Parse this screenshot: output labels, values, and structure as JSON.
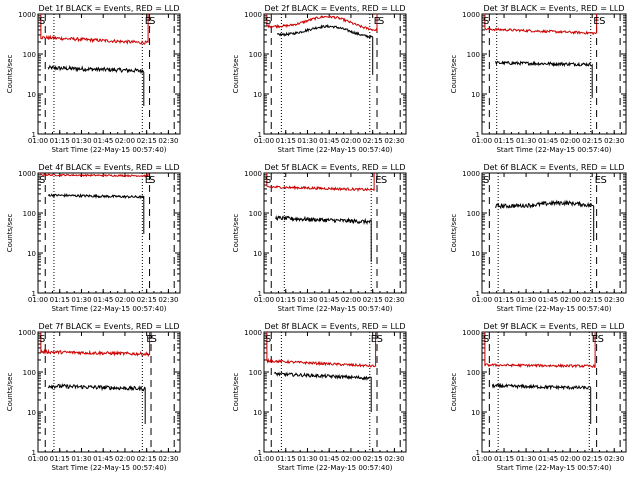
{
  "figure": {
    "panels_title_template": "Det {det} BLACK = Events, RED = LLD"
  },
  "chart_data": [
    {
      "type": "line",
      "det": "1f",
      "title": "Det 1f BLACK = Events, RED = LLD",
      "xlabel": "Start Time (22-May-15 00:57:40)",
      "ylabel": "Counts/sec",
      "yscale": "log",
      "ylim": [
        1,
        1000
      ],
      "xlim": [
        "01:00",
        "02:38"
      ],
      "x_ticks": [
        "01:00",
        "01:15",
        "01:30",
        "01:45",
        "02:00",
        "02:15",
        "02:30"
      ],
      "y_ticks": [
        "1",
        "10",
        "100",
        "1000"
      ],
      "flags": [
        {
          "label": "S",
          "time": "01:00"
        },
        {
          "label": "E",
          "time": "02:13"
        },
        {
          "label": "S",
          "time": "02:16"
        }
      ],
      "dashed_lines": [
        "01:05",
        "02:17",
        "02:34"
      ],
      "dotted_lines": [
        "01:11",
        "02:12"
      ],
      "series": [
        {
          "color": "#000000",
          "start": "01:07",
          "end": "02:13",
          "level_start": 45,
          "level_end": 38,
          "noise": 0.05,
          "drop_to": 5
        },
        {
          "color": "#cc0000",
          "start": "01:02",
          "end": "02:16",
          "level_start": 260,
          "level_end": 190,
          "noise": 0.04,
          "rise_start": 1000,
          "rise_end": 1000
        }
      ]
    },
    {
      "type": "line",
      "det": "2f",
      "title": "Det 2f BLACK = Events, RED = LLD",
      "xlabel": "Start Time (22-May-15 00:57:40)",
      "ylabel": "Counts/sec",
      "yscale": "log",
      "ylim": [
        1,
        1000
      ],
      "xlim": [
        "01:00",
        "02:38"
      ],
      "x_ticks": [
        "01:00",
        "01:15",
        "01:30",
        "01:45",
        "02:00",
        "02:15",
        "02:30"
      ],
      "y_ticks": [
        "1",
        "10",
        "100",
        "1000"
      ],
      "flags": [
        {
          "label": "S",
          "time": "01:00"
        },
        {
          "label": "E",
          "time": "02:15"
        },
        {
          "label": "S",
          "time": "02:18"
        }
      ],
      "dashed_lines": [
        "01:05",
        "02:18",
        "02:34"
      ],
      "dotted_lines": [
        "01:12",
        "02:13"
      ],
      "series": [
        {
          "color": "#000000",
          "start": "01:09",
          "end": "02:15",
          "level_start": 300,
          "level_end": 250,
          "noise": 0.03,
          "drop_to": 30,
          "bump": {
            "center": "01:45",
            "height": 1.8,
            "width": 18
          }
        },
        {
          "color": "#cc0000",
          "start": "01:02",
          "end": "02:18",
          "level_start": 500,
          "level_end": 380,
          "noise": 0.03,
          "rise_start": 1000,
          "rise_end": 1000,
          "bump": {
            "center": "01:45",
            "height": 2.0,
            "width": 18
          }
        }
      ]
    },
    {
      "type": "line",
      "det": "3f",
      "title": "Det 3f BLACK = Events, RED = LLD",
      "xlabel": "Start Time (22-May-15 00:57:40)",
      "ylabel": "Counts/sec",
      "yscale": "log",
      "ylim": [
        1,
        1000
      ],
      "xlim": [
        "01:00",
        "02:38"
      ],
      "x_ticks": [
        "01:00",
        "01:15",
        "01:30",
        "01:45",
        "02:00",
        "02:15",
        "02:30"
      ],
      "y_ticks": [
        "1",
        "10",
        "100",
        "1000"
      ],
      "flags": [
        {
          "label": "S",
          "time": "01:00"
        },
        {
          "label": "E",
          "time": "02:15"
        },
        {
          "label": "S",
          "time": "02:19"
        }
      ],
      "dashed_lines": [
        "01:05",
        "02:18",
        "02:34"
      ],
      "dotted_lines": [
        "01:10",
        "02:14"
      ],
      "series": [
        {
          "color": "#000000",
          "start": "01:09",
          "end": "02:15",
          "level_start": 60,
          "level_end": 55,
          "noise": 0.04,
          "drop_to": 8
        },
        {
          "color": "#cc0000",
          "start": "01:02",
          "end": "02:18",
          "level_start": 420,
          "level_end": 330,
          "noise": 0.03,
          "rise_start": 1000,
          "rise_end": 1000
        }
      ]
    },
    {
      "type": "line",
      "det": "4f",
      "title": "Det 4f BLACK = Events, RED = LLD",
      "xlabel": "Start Time (22-May-15 00:57:40)",
      "ylabel": "Counts/sec",
      "yscale": "log",
      "ylim": [
        1,
        1000
      ],
      "xlim": [
        "01:00",
        "02:38"
      ],
      "x_ticks": [
        "01:00",
        "01:15",
        "01:30",
        "01:45",
        "02:00",
        "02:15",
        "02:30"
      ],
      "y_ticks": [
        "1",
        "10",
        "100",
        "1000"
      ],
      "flags": [
        {
          "label": "S",
          "time": "01:00"
        },
        {
          "label": "E",
          "time": "02:13"
        },
        {
          "label": "S",
          "time": "02:16"
        }
      ],
      "dashed_lines": [
        "01:05",
        "02:17",
        "02:34"
      ],
      "dotted_lines": [
        "01:11",
        "02:12"
      ],
      "series": [
        {
          "color": "#000000",
          "start": "01:07",
          "end": "02:13",
          "level_start": 280,
          "level_end": 250,
          "noise": 0.03,
          "drop_to": 30
        },
        {
          "color": "#cc0000",
          "start": "01:02",
          "end": "02:16",
          "level_start": 900,
          "level_end": 850,
          "noise": 0.02,
          "rise_start": 1000,
          "rise_end": 1000
        }
      ]
    },
    {
      "type": "line",
      "det": "5f",
      "title": "Det 5f BLACK = Events, RED = LLD",
      "xlabel": "Start Time (22-May-15 00:57:40)",
      "ylabel": "Counts/sec",
      "yscale": "log",
      "ylim": [
        1,
        1000
      ],
      "xlim": [
        "01:00",
        "02:38"
      ],
      "x_ticks": [
        "01:00",
        "01:15",
        "01:30",
        "01:45",
        "02:00",
        "02:15",
        "02:30"
      ],
      "y_ticks": [
        "1",
        "10",
        "100",
        "1000"
      ],
      "flags": [
        {
          "label": "S",
          "time": "01:00"
        },
        {
          "label": "E",
          "time": "02:16"
        },
        {
          "label": "S",
          "time": "02:20"
        }
      ],
      "dashed_lines": [
        "01:05",
        "02:18",
        "02:34"
      ],
      "dotted_lines": [
        "01:14",
        "02:14"
      ],
      "series": [
        {
          "color": "#000000",
          "start": "01:08",
          "end": "02:14",
          "level_start": 75,
          "level_end": 60,
          "noise": 0.05,
          "drop_to": 6
        },
        {
          "color": "#cc0000",
          "start": "01:02",
          "end": "02:16",
          "level_start": 450,
          "level_end": 380,
          "noise": 0.03,
          "rise_start": 1000,
          "rise_end": 1000
        }
      ]
    },
    {
      "type": "line",
      "det": "6f",
      "title": "Det 6f BLACK = Events, RED = LLD",
      "xlabel": "Start Time (22-May-15 00:57:40)",
      "ylabel": "Counts/sec",
      "yscale": "log",
      "ylim": [
        1,
        1000
      ],
      "xlim": [
        "01:00",
        "02:38"
      ],
      "x_ticks": [
        "01:00",
        "01:15",
        "01:30",
        "01:45",
        "02:00",
        "02:15",
        "02:30"
      ],
      "y_ticks": [
        "1",
        "10",
        "100",
        "1000"
      ],
      "flags": [
        {
          "label": "S",
          "time": "01:00"
        },
        {
          "label": "E",
          "time": "02:16"
        },
        {
          "label": "S",
          "time": "02:20"
        }
      ],
      "dashed_lines": [
        "01:05",
        "02:18",
        "02:34"
      ],
      "dotted_lines": [
        "01:11",
        "02:14"
      ],
      "series": [
        {
          "color": "#000000",
          "start": "01:09",
          "end": "02:16",
          "level_start": 150,
          "level_end": 140,
          "noise": 0.05,
          "drop_to": 20,
          "bump": {
            "center": "01:55",
            "height": 1.25,
            "width": 20
          }
        }
      ]
    },
    {
      "type": "line",
      "det": "7f",
      "title": "Det 7f BLACK = Events, RED = LLD",
      "xlabel": "Start Time (22-May-15 00:57:40)",
      "ylabel": "Counts/sec",
      "yscale": "log",
      "ylim": [
        1,
        1000
      ],
      "xlim": [
        "01:00",
        "02:38"
      ],
      "x_ticks": [
        "01:00",
        "01:15",
        "01:30",
        "01:45",
        "02:00",
        "02:15",
        "02:30"
      ],
      "y_ticks": [
        "1",
        "10",
        "100",
        "1000"
      ],
      "flags": [
        {
          "label": "S",
          "time": "01:00"
        },
        {
          "label": "E",
          "time": "02:14"
        },
        {
          "label": "S",
          "time": "02:17"
        }
      ],
      "dashed_lines": [
        "01:05",
        "02:18",
        "02:34"
      ],
      "dotted_lines": [
        "01:11",
        "02:12"
      ],
      "series": [
        {
          "color": "#000000",
          "start": "01:07",
          "end": "02:14",
          "level_start": 45,
          "level_end": 38,
          "noise": 0.05,
          "drop_to": 5
        },
        {
          "color": "#cc0000",
          "start": "01:02",
          "end": "02:17",
          "level_start": 320,
          "level_end": 280,
          "noise": 0.04,
          "rise_start": 1000,
          "rise_end": 1000
        }
      ]
    },
    {
      "type": "line",
      "det": "8f",
      "title": "Det 8f BLACK = Events, RED = LLD",
      "xlabel": "Start Time (22-May-15 00:57:40)",
      "ylabel": "Counts/sec",
      "yscale": "log",
      "ylim": [
        1,
        1000
      ],
      "xlim": [
        "01:00",
        "02:38"
      ],
      "x_ticks": [
        "01:00",
        "01:15",
        "01:30",
        "01:45",
        "02:00",
        "02:15",
        "02:30"
      ],
      "y_ticks": [
        "1",
        "10",
        "100",
        "1000"
      ],
      "flags": [
        {
          "label": "S",
          "time": "01:00"
        },
        {
          "label": "E",
          "time": "02:13"
        },
        {
          "label": "S",
          "time": "02:17"
        }
      ],
      "dashed_lines": [
        "01:05",
        "02:18",
        "02:34"
      ],
      "dotted_lines": [
        "01:12",
        "02:13"
      ],
      "series": [
        {
          "color": "#000000",
          "start": "01:07",
          "end": "02:14",
          "level_start": 90,
          "level_end": 70,
          "noise": 0.04,
          "drop_to": 10
        },
        {
          "color": "#cc0000",
          "start": "01:02",
          "end": "02:17",
          "level_start": 190,
          "level_end": 140,
          "noise": 0.03,
          "rise_start": 1000,
          "rise_end": 1000
        }
      ]
    },
    {
      "type": "line",
      "det": "9f",
      "title": "Det 9f BLACK = Events, RED = LLD",
      "xlabel": "Start Time (22-May-15 00:57:40)",
      "ylabel": "Counts/sec",
      "yscale": "log",
      "ylim": [
        1,
        1000
      ],
      "xlim": [
        "01:00",
        "02:38"
      ],
      "x_ticks": [
        "01:00",
        "01:15",
        "01:30",
        "01:45",
        "02:00",
        "02:15",
        "02:30"
      ],
      "y_ticks": [
        "1",
        "10",
        "100",
        "1000"
      ],
      "flags": [
        {
          "label": "S",
          "time": "01:00"
        },
        {
          "label": "E",
          "time": "02:14"
        },
        {
          "label": "S",
          "time": "02:18"
        }
      ],
      "dashed_lines": [
        "01:05",
        "02:18",
        "02:34"
      ],
      "dotted_lines": [
        "01:11",
        "02:13"
      ],
      "series": [
        {
          "color": "#000000",
          "start": "01:07",
          "end": "02:14",
          "level_start": 45,
          "level_end": 40,
          "noise": 0.04,
          "drop_to": 5
        },
        {
          "color": "#cc0000",
          "start": "01:02",
          "end": "02:17",
          "level_start": 150,
          "level_end": 140,
          "noise": 0.03,
          "rise_start": 1000,
          "rise_end": 1000
        }
      ]
    }
  ]
}
